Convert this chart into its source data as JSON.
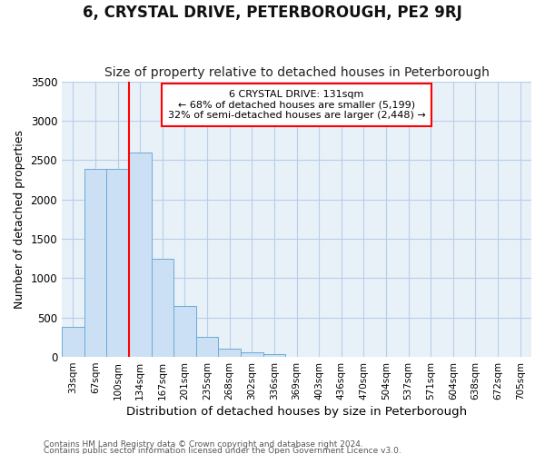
{
  "title": "6, CRYSTAL DRIVE, PETERBOROUGH, PE2 9RJ",
  "subtitle": "Size of property relative to detached houses in Peterborough",
  "xlabel": "Distribution of detached houses by size in Peterborough",
  "ylabel": "Number of detached properties",
  "categories": [
    "33sqm",
    "67sqm",
    "100sqm",
    "134sqm",
    "167sqm",
    "201sqm",
    "235sqm",
    "268sqm",
    "302sqm",
    "336sqm",
    "369sqm",
    "403sqm",
    "436sqm",
    "470sqm",
    "504sqm",
    "537sqm",
    "571sqm",
    "604sqm",
    "638sqm",
    "672sqm",
    "705sqm"
  ],
  "values": [
    380,
    2390,
    2390,
    2600,
    1250,
    650,
    255,
    105,
    55,
    35,
    0,
    0,
    0,
    0,
    0,
    0,
    0,
    0,
    0,
    0,
    0
  ],
  "bar_color": "#cce0f5",
  "bar_edge_color": "#6aabd6",
  "red_line_index": 3,
  "property_label": "6 CRYSTAL DRIVE: 131sqm",
  "annotation_line1": "← 68% of detached houses are smaller (5,199)",
  "annotation_line2": "32% of semi-detached houses are larger (2,448) →",
  "ylim": [
    0,
    3500
  ],
  "yticks": [
    0,
    500,
    1000,
    1500,
    2000,
    2500,
    3000,
    3500
  ],
  "footer1": "Contains HM Land Registry data © Crown copyright and database right 2024.",
  "footer2": "Contains public sector information licensed under the Open Government Licence v3.0.",
  "bg_color": "#ffffff",
  "plot_bg_color": "#e8f0f8",
  "grid_color": "#b8cfe8",
  "title_fontsize": 12,
  "subtitle_fontsize": 10
}
